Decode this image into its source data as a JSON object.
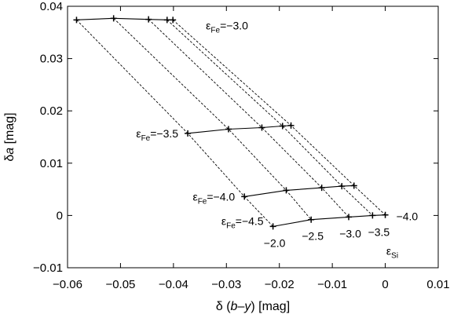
{
  "chart_data": {
    "type": "line",
    "xlabel_parts": [
      "δ (",
      "b",
      "–",
      "y",
      ") [mag]"
    ],
    "ylabel_parts": [
      "δ",
      "a",
      " [mag]"
    ],
    "xlim": [
      -0.06,
      0.01
    ],
    "ylim": [
      -0.01,
      0.04
    ],
    "xticks": [
      -0.06,
      -0.05,
      -0.04,
      -0.03,
      -0.02,
      -0.01,
      0,
      0.01
    ],
    "yticks": [
      -0.01,
      0,
      0.01,
      0.02,
      0.03,
      0.04
    ],
    "xtick_labels": [
      "−0.06",
      "−0.05",
      "−0.04",
      "−0.03",
      "−0.02",
      "−0.01",
      "0",
      "0.01"
    ],
    "ytick_labels": [
      "−0.01",
      "0",
      "0.01",
      "0.02",
      "0.03",
      "0.04"
    ],
    "grid": false,
    "eps_si_values": [
      -2.0,
      -2.5,
      -3.0,
      -3.5,
      -4.0
    ],
    "series": [
      {
        "eps_fe": -3.0,
        "eps_fe_label": "−3.0",
        "x": [
          -0.0583,
          -0.0513,
          -0.0447,
          -0.0412,
          -0.0401
        ],
        "y": [
          0.0374,
          0.0377,
          0.0375,
          0.0374,
          0.0374
        ]
      },
      {
        "eps_fe": -3.5,
        "eps_fe_label": "−3.5",
        "x": [
          -0.0373,
          -0.0296,
          -0.0233,
          -0.0194,
          -0.0178
        ],
        "y": [
          0.0157,
          0.0165,
          0.0168,
          0.0171,
          0.0172
        ]
      },
      {
        "eps_fe": -4.0,
        "eps_fe_label": "−4.0",
        "x": [
          -0.0266,
          -0.0187,
          -0.012,
          -0.0082,
          -0.0059
        ],
        "y": [
          0.0036,
          0.0048,
          0.0053,
          0.0056,
          0.0057
        ]
      },
      {
        "eps_fe": -4.5,
        "eps_fe_label": "−4.5",
        "x": [
          -0.0212,
          -0.014,
          -0.0069,
          -0.0024,
          0.0
        ],
        "y": [
          -0.0021,
          -0.0008,
          -0.0003,
          0.0,
          0.0001
        ]
      }
    ],
    "annotations": {
      "eps_symbol": "ε",
      "fe_subscript": "Fe",
      "si_subscript": "Si",
      "equals": "=",
      "si_tick_labels": [
        "−2.0",
        "−2.5",
        "−3.0",
        "−3.5",
        "−4.0"
      ]
    }
  }
}
